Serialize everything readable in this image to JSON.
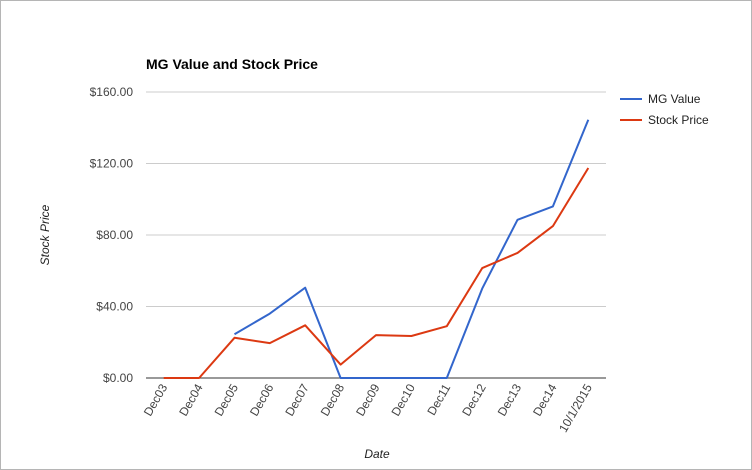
{
  "chart_data": {
    "type": "line",
    "title": "MG Value and Stock Price",
    "xlabel": "Date",
    "ylabel": "Stock Price",
    "categories": [
      "Dec03",
      "Dec04",
      "Dec05",
      "Dec06",
      "Dec07",
      "Dec08",
      "Dec09",
      "Dec10",
      "Dec11",
      "Dec12",
      "Dec13",
      "Dec14",
      "10/1/2015"
    ],
    "yticks": [
      "$0.00",
      "$40.00",
      "$80.00",
      "$120.00",
      "$160.00"
    ],
    "ylim": [
      0,
      160
    ],
    "grid": true,
    "legend_position": "right",
    "series": [
      {
        "name": "MG Value",
        "color": "#3366cc",
        "values": [
          null,
          null,
          24.5,
          36,
          50.5,
          0,
          0,
          0,
          0,
          50,
          88.5,
          96,
          144.5
        ]
      },
      {
        "name": "Stock Price",
        "color": "#dc3912",
        "values": [
          0,
          0,
          22.5,
          19.5,
          29.5,
          7.5,
          24,
          23.5,
          29,
          61.5,
          70,
          85,
          117.5
        ]
      }
    ]
  }
}
